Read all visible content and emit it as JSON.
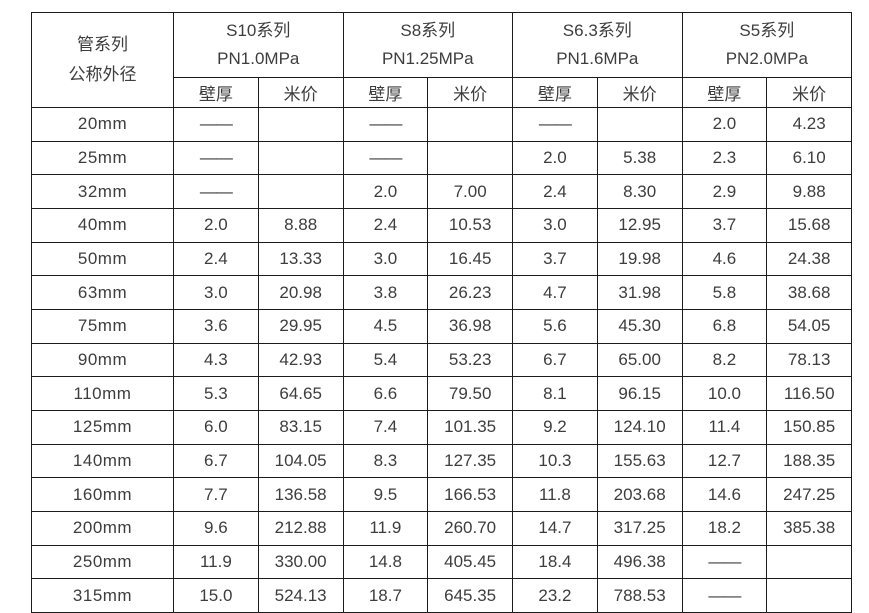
{
  "table": {
    "corner_header": {
      "line1": "管系列",
      "line2": "公称外径"
    },
    "series": [
      {
        "name": "S10系列",
        "pn": "PN1.0MPa"
      },
      {
        "name": "S8系列",
        "pn": "PN1.25MPa"
      },
      {
        "name": "S6.3系列",
        "pn": "PN1.6MPa"
      },
      {
        "name": "S5系列",
        "pn": "PN2.0MPa"
      }
    ],
    "sub_headers": {
      "wall": "壁厚",
      "price": "米价"
    },
    "rows": [
      {
        "size": "20mm",
        "cells": [
          "——",
          "",
          "——",
          "",
          "——",
          "",
          "2.0",
          "4.23"
        ]
      },
      {
        "size": "25mm",
        "cells": [
          "——",
          "",
          "——",
          "",
          "2.0",
          "5.38",
          "2.3",
          "6.10"
        ]
      },
      {
        "size": "32mm",
        "cells": [
          "——",
          "",
          "2.0",
          "7.00",
          "2.4",
          "8.30",
          "2.9",
          "9.88"
        ]
      },
      {
        "size": "40mm",
        "cells": [
          "2.0",
          "8.88",
          "2.4",
          "10.53",
          "3.0",
          "12.95",
          "3.7",
          "15.68"
        ]
      },
      {
        "size": "50mm",
        "cells": [
          "2.4",
          "13.33",
          "3.0",
          "16.45",
          "3.7",
          "19.98",
          "4.6",
          "24.38"
        ]
      },
      {
        "size": "63mm",
        "cells": [
          "3.0",
          "20.98",
          "3.8",
          "26.23",
          "4.7",
          "31.98",
          "5.8",
          "38.68"
        ]
      },
      {
        "size": "75mm",
        "cells": [
          "3.6",
          "29.95",
          "4.5",
          "36.98",
          "5.6",
          "45.30",
          "6.8",
          "54.05"
        ]
      },
      {
        "size": "90mm",
        "cells": [
          "4.3",
          "42.93",
          "5.4",
          "53.23",
          "6.7",
          "65.00",
          "8.2",
          "78.13"
        ]
      },
      {
        "size": "110mm",
        "cells": [
          "5.3",
          "64.65",
          "6.6",
          "79.50",
          "8.1",
          "96.15",
          "10.0",
          "116.50"
        ]
      },
      {
        "size": "125mm",
        "cells": [
          "6.0",
          "83.15",
          "7.4",
          "101.35",
          "9.2",
          "124.10",
          "11.4",
          "150.85"
        ]
      },
      {
        "size": "140mm",
        "cells": [
          "6.7",
          "104.05",
          "8.3",
          "127.35",
          "10.3",
          "155.63",
          "12.7",
          "188.35"
        ]
      },
      {
        "size": "160mm",
        "cells": [
          "7.7",
          "136.58",
          "9.5",
          "166.53",
          "11.8",
          "203.68",
          "14.6",
          "247.25"
        ]
      },
      {
        "size": "200mm",
        "cells": [
          "9.6",
          "212.88",
          "11.9",
          "260.70",
          "14.7",
          "317.25",
          "18.2",
          "385.38"
        ]
      },
      {
        "size": "250mm",
        "cells": [
          "11.9",
          "330.00",
          "14.8",
          "405.45",
          "18.4",
          "496.38",
          "——",
          ""
        ]
      },
      {
        "size": "315mm",
        "cells": [
          "15.0",
          "524.13",
          "18.7",
          "645.35",
          "23.2",
          "788.53",
          "——",
          ""
        ]
      }
    ]
  }
}
